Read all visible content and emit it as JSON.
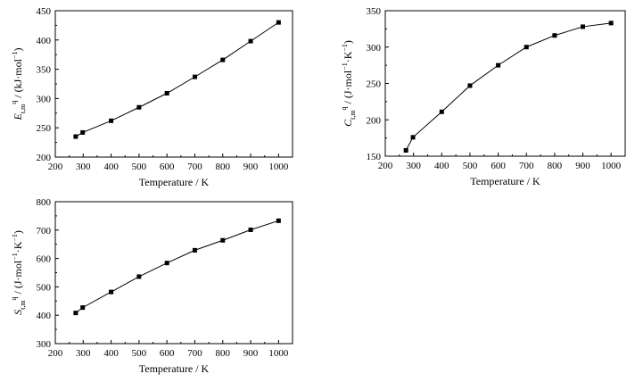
{
  "chart_data": [
    {
      "type": "line",
      "xlabel": "Temperature / K",
      "ylabel": {
        "base": "E",
        "sub": "t,m",
        "sup": "q",
        "unit": " / (kJ·mol",
        "unit_sup": "−1",
        "unit_end": ")"
      },
      "xlim": [
        200,
        1050
      ],
      "ylim": [
        200,
        450
      ],
      "xticks": [
        200,
        300,
        400,
        500,
        600,
        700,
        800,
        900,
        1000
      ],
      "yticks": [
        200,
        250,
        300,
        350,
        400,
        450
      ],
      "grid": false,
      "marker": "square",
      "series": [
        {
          "x": [
            273.15,
            298.15,
            400,
            500,
            600,
            700,
            800,
            900,
            1000
          ],
          "y": [
            235,
            242,
            262,
            285,
            309,
            337,
            366,
            398,
            430
          ]
        }
      ]
    },
    {
      "type": "line",
      "xlabel": "Temperature / K",
      "ylabel": {
        "base": "C",
        "sub": "t,m",
        "sup": "q",
        "unit": " / (J·mol",
        "unit_sup": "−1",
        "unit_mid": "·K",
        "unit_sup2": "−1",
        "unit_end": ")"
      },
      "xlim": [
        200,
        1050
      ],
      "ylim": [
        150,
        350
      ],
      "xticks": [
        200,
        300,
        400,
        500,
        600,
        700,
        800,
        900,
        1000
      ],
      "yticks": [
        150,
        200,
        250,
        300,
        350
      ],
      "grid": false,
      "marker": "square",
      "series": [
        {
          "x": [
            273.15,
            298.15,
            400,
            500,
            600,
            700,
            800,
            900,
            1000
          ],
          "y": [
            158,
            176,
            211,
            247,
            275,
            300,
            316,
            328,
            333
          ]
        }
      ]
    },
    {
      "type": "line",
      "xlabel": "Temperature / K",
      "ylabel": {
        "base": "S",
        "sub": "t,m",
        "sup": "q",
        "unit": " / (J·mol",
        "unit_sup": "−1",
        "unit_mid": "·K",
        "unit_sup2": "−1",
        "unit_end": ")"
      },
      "xlim": [
        200,
        1050
      ],
      "ylim": [
        300,
        800
      ],
      "xticks": [
        200,
        300,
        400,
        500,
        600,
        700,
        800,
        900,
        1000
      ],
      "yticks": [
        300,
        400,
        500,
        600,
        700,
        800
      ],
      "grid": false,
      "marker": "square",
      "series": [
        {
          "x": [
            273.15,
            298.15,
            400,
            500,
            600,
            700,
            800,
            900,
            1000
          ],
          "y": [
            408,
            427,
            482,
            536,
            584,
            629,
            664,
            701,
            733
          ]
        }
      ]
    }
  ]
}
